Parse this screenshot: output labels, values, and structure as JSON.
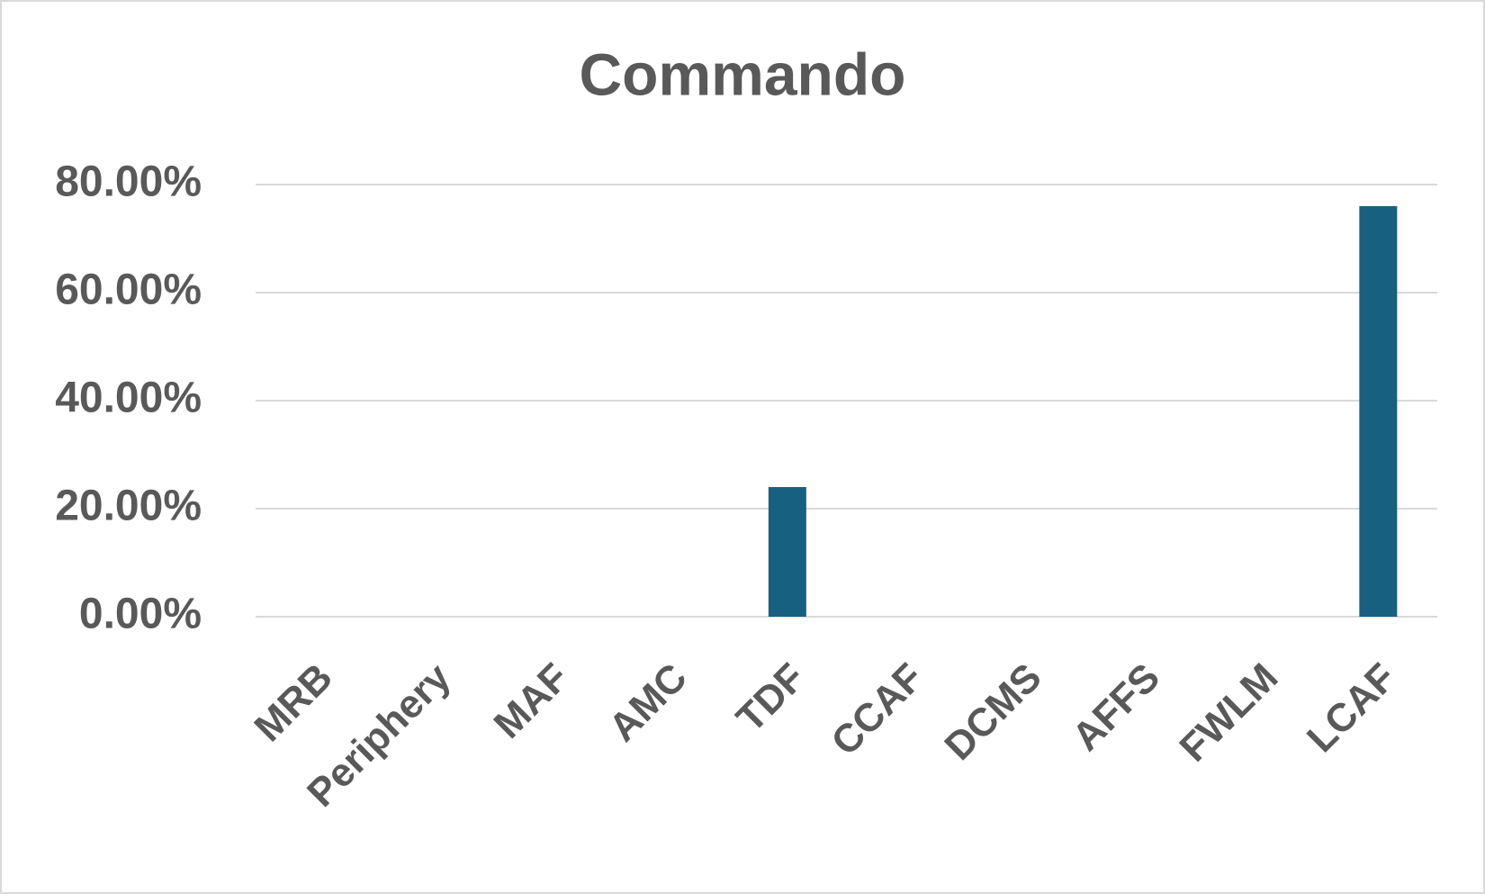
{
  "chart_data": {
    "type": "bar",
    "title": "Commando",
    "categories": [
      "MRB",
      "Periphery",
      "MAF",
      "AMC",
      "TDF",
      "CCAF",
      "DCMS",
      "AFFS",
      "FWLM",
      "LCAF"
    ],
    "values": [
      0,
      0,
      0,
      0,
      24,
      0,
      0,
      0,
      0,
      76
    ],
    "color": "#17607f",
    "ylim": [
      0,
      80
    ],
    "yticks": [
      {
        "value": 0,
        "label": "0.00%"
      },
      {
        "value": 20,
        "label": "20.00%"
      },
      {
        "value": 40,
        "label": "40.00%"
      },
      {
        "value": 60,
        "label": "60.00%"
      },
      {
        "value": 80,
        "label": "80.00%"
      }
    ],
    "grid": true
  }
}
